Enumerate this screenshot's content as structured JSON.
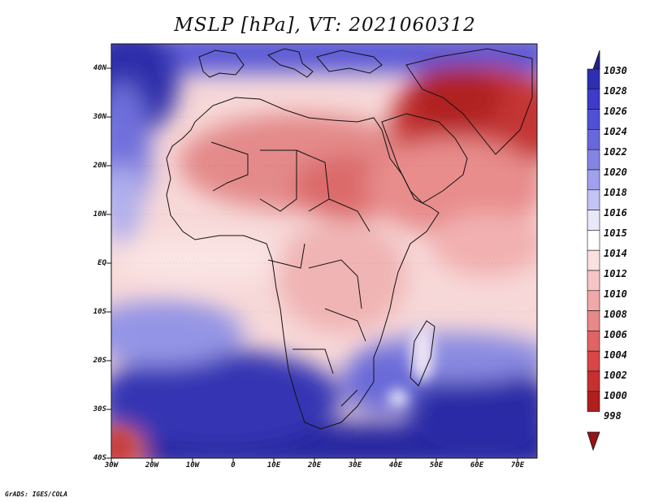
{
  "title": "MSLP [hPa], VT: 2021060312",
  "credit": "GrADS: IGES/COLA",
  "lat_labels": [
    "40N",
    "30N",
    "20N",
    "10N",
    "EQ",
    "10S",
    "20S",
    "30S",
    "40S"
  ],
  "lon_labels": [
    "30W",
    "20W",
    "10W",
    "0",
    "10E",
    "20E",
    "30E",
    "40E",
    "50E",
    "60E",
    "70E"
  ],
  "legend": {
    "levels": [
      "1030",
      "1028",
      "1026",
      "1024",
      "1022",
      "1020",
      "1018",
      "1016",
      "1015",
      "1014",
      "1012",
      "1010",
      "1008",
      "1006",
      "1004",
      "1002",
      "1000",
      "998"
    ],
    "colors": [
      "#23238c",
      "#2e2eb0",
      "#3c3cc8",
      "#5050d4",
      "#6868dc",
      "#8484e4",
      "#a0a0ec",
      "#c4c4f4",
      "#e8e8fa",
      "#ffffff",
      "#fbe0e0",
      "#f6c6c6",
      "#f0a8a8",
      "#e88888",
      "#e06464",
      "#d84646",
      "#c83030",
      "#b01e1e",
      "#961414"
    ]
  },
  "pressure_fields": [
    {
      "name": "mediterranean-high",
      "color": "#4a4ad0"
    },
    {
      "name": "atlantic-high",
      "color": "#3232b8"
    },
    {
      "name": "south-atlantic-high",
      "color": "#2a2aa8"
    },
    {
      "name": "indian-ocean-high",
      "color": "#2a2aa8"
    },
    {
      "name": "arabian-low",
      "color": "#b52828"
    },
    {
      "name": "saharan-low",
      "color": "#e47a7a"
    },
    {
      "name": "equatorial-trough",
      "color": "#f8d6d6"
    }
  ]
}
